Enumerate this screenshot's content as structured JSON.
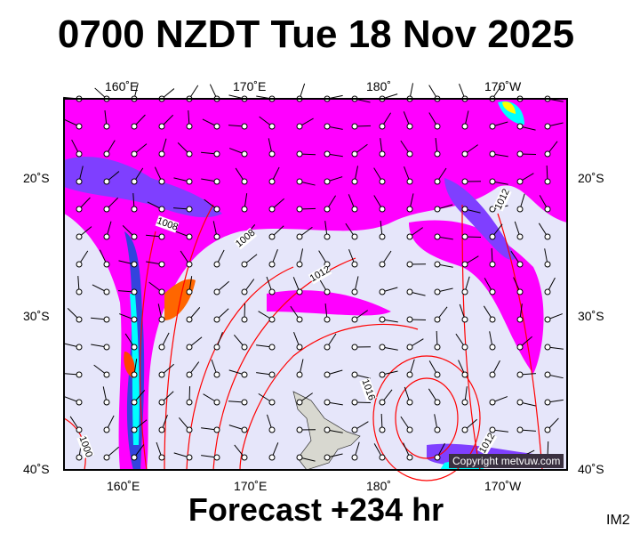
{
  "title": "0700 NZDT Tue 18 Nov 2025",
  "footer": "Forecast +234 hr",
  "image_code": "IM2",
  "copyright": "Copyright metvuw.com",
  "lon_labels": [
    "160˚E",
    "170˚E",
    "180˚",
    "170˚W"
  ],
  "lat_labels": [
    "20˚S",
    "30˚S",
    "40˚S"
  ],
  "isobar_labels": [
    "1008",
    "1008",
    "1012",
    "1016",
    "1012",
    "1012",
    "1000"
  ],
  "colors": {
    "background": "#e6e6fa",
    "precip_light": "#ff00ff",
    "precip_mid": "#7f3fff",
    "precip_heavy": "#00ffff",
    "isobar": "#ff0000",
    "land": "#d8d8d0"
  }
}
